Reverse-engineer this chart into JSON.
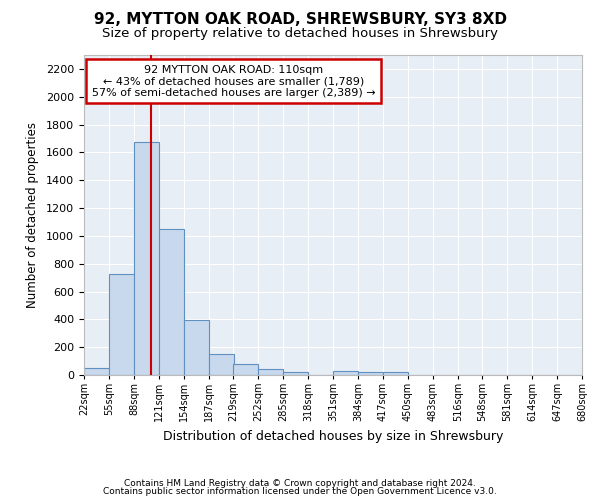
{
  "title1": "92, MYTTON OAK ROAD, SHREWSBURY, SY3 8XD",
  "title2": "Size of property relative to detached houses in Shrewsbury",
  "xlabel": "Distribution of detached houses by size in Shrewsbury",
  "ylabel": "Number of detached properties",
  "footnote1": "Contains HM Land Registry data © Crown copyright and database right 2024.",
  "footnote2": "Contains public sector information licensed under the Open Government Licence v3.0.",
  "annotation_line1": "92 MYTTON OAK ROAD: 110sqm",
  "annotation_line2": "← 43% of detached houses are smaller (1,789)",
  "annotation_line3": "57% of semi-detached houses are larger (2,389) →",
  "bar_edges": [
    22,
    55,
    88,
    121,
    154,
    187,
    219,
    252,
    285,
    318,
    351,
    384,
    417,
    450,
    483,
    516,
    548,
    581,
    614,
    647,
    680
  ],
  "bar_heights": [
    50,
    726,
    1672,
    1046,
    393,
    148,
    80,
    40,
    18,
    0,
    30,
    20,
    20,
    0,
    0,
    0,
    0,
    0,
    0,
    0
  ],
  "bar_color": "#c8d8ed",
  "bar_edge_color": "#6090c0",
  "red_line_x": 110,
  "ylim": [
    0,
    2300
  ],
  "yticks": [
    0,
    200,
    400,
    600,
    800,
    1000,
    1200,
    1400,
    1600,
    1800,
    2000,
    2200
  ],
  "background_color": "#ffffff",
  "plot_bg_color": "#e8eef5",
  "grid_color": "#ffffff",
  "annotation_box_bg": "#ffffff",
  "annotation_box_edge": "#cc0000",
  "red_line_color": "#cc0000",
  "title1_fontsize": 11,
  "title2_fontsize": 9.5
}
